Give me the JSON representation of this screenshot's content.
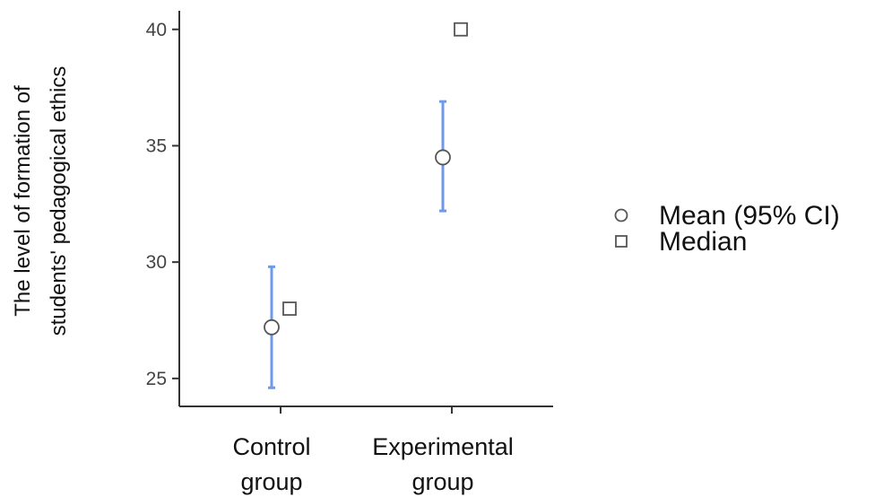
{
  "chart_data": {
    "type": "errorbar",
    "title": "",
    "xlabel": "",
    "ylabel": [
      "The level of formation of",
      "students' pedagogical ethics"
    ],
    "categories": [
      {
        "id": "control",
        "lines": [
          "Control",
          "group"
        ]
      },
      {
        "id": "experimental",
        "lines": [
          "Experimental",
          "group"
        ]
      }
    ],
    "series": [
      {
        "name": "Mean (95% CI)",
        "marker": "circle",
        "values": [
          27.2,
          34.5
        ],
        "ci_low": [
          24.6,
          32.2
        ],
        "ci_high": [
          29.8,
          36.9
        ]
      },
      {
        "name": "Median",
        "marker": "square",
        "values": [
          28,
          40
        ]
      }
    ],
    "ylim": [
      23.8,
      40.8
    ],
    "yticks": [
      25,
      30,
      35,
      40
    ],
    "grid": false,
    "legend_position": "right",
    "colors": {
      "ci": "#6f9ae8",
      "axis": "#333333",
      "marker_stroke": "#555555",
      "marker_fill": "#ffffff",
      "tick_text": "#444444",
      "text": "#111111"
    }
  }
}
